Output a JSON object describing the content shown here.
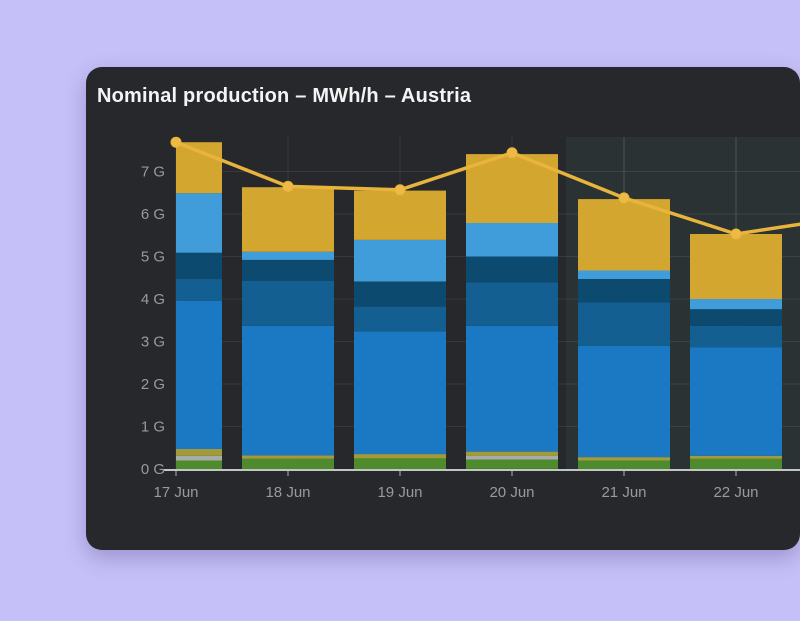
{
  "page": {
    "background_color": "#c6c0f8"
  },
  "card": {
    "background_color": "#26282b",
    "title": "Nominal production – MWh/h – Austria",
    "title_color": "#f4f4f4"
  },
  "chart_data": {
    "type": "bar",
    "subtype": "stacked-bars-with-total-line-overlay",
    "title": "Nominal production – MWh/h – Austria",
    "xlabel": "",
    "ylabel": "",
    "categories": [
      "17 Jun",
      "18 Jun",
      "19 Jun",
      "20 Jun",
      "21 Jun",
      "22 Jun"
    ],
    "ytick_labels": [
      "0 G",
      "1 G",
      "2 G",
      "3 G",
      "4 G",
      "5 G",
      "6 G",
      "7 G"
    ],
    "ylim": [
      0,
      7.8
    ],
    "grid": true,
    "legend_position": "none",
    "series": [
      {
        "name": "green",
        "color": "#4d8b2d",
        "values": [
          0.2,
          0.24,
          0.25,
          0.22,
          0.2,
          0.24
        ]
      },
      {
        "name": "gray",
        "color": "#a8aca6",
        "values": [
          0.11,
          0.0,
          0.0,
          0.09,
          0.0,
          0.0
        ]
      },
      {
        "name": "olive",
        "color": "#a39b3b",
        "values": [
          0.16,
          0.08,
          0.1,
          0.1,
          0.08,
          0.07
        ]
      },
      {
        "name": "blue",
        "color": "#1a79c2",
        "values": [
          3.49,
          3.05,
          2.89,
          2.96,
          2.62,
          2.55
        ]
      },
      {
        "name": "blue-mid",
        "color": "#135f92",
        "values": [
          0.51,
          1.06,
          0.58,
          1.02,
          1.02,
          0.51
        ]
      },
      {
        "name": "blue-dark",
        "color": "#0d4a70",
        "values": [
          0.62,
          0.49,
          0.59,
          0.61,
          0.55,
          0.39
        ]
      },
      {
        "name": "blue-light",
        "color": "#419dd9",
        "values": [
          1.4,
          0.19,
          0.98,
          0.79,
          0.2,
          0.24
        ]
      },
      {
        "name": "gold",
        "color": "#d3a630",
        "values": [
          1.2,
          1.52,
          1.16,
          1.62,
          1.68,
          1.53
        ]
      }
    ],
    "bar_totals": [
      7.69,
      6.63,
      6.55,
      7.41,
      6.35,
      5.53
    ],
    "line_series": {
      "name": "total-production",
      "color": "#e8b43c",
      "point_fill": "#edbb45",
      "values": [
        7.69,
        6.65,
        6.57,
        7.44,
        6.38,
        5.53
      ],
      "right_edge_value": 5.76
    },
    "highlight_region": {
      "from_category": "21 Jun",
      "to": "right-edge",
      "fill": "rgba(110,190,190,0.07)"
    },
    "axis_style": {
      "text_color": "#9a9a9a",
      "tick_color": "#85898b",
      "axis_line_color": "#c2c5c6",
      "grid_color": "rgba(255,255,255,0.08)",
      "grid_color_highlight": "rgba(255,255,255,0.17)"
    },
    "layout_hints": {
      "first_bar_clipped_at_left_edge": true,
      "card_clipped_at_right_edge": true
    }
  }
}
